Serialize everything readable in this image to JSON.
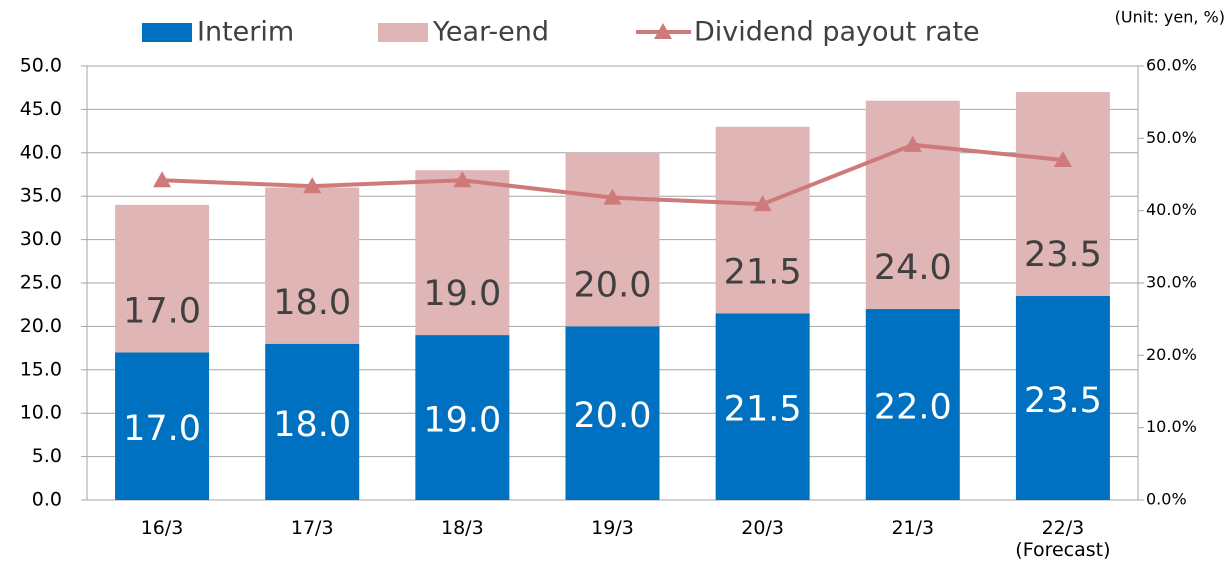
{
  "chart_data": {
    "type": "bar",
    "stacked": true,
    "note": "(Unit: yen, %)",
    "categories": [
      "16/3",
      "17/3",
      "18/3",
      "19/3",
      "20/3",
      "21/3",
      "22/3\n(Forecast)"
    ],
    "series": [
      {
        "name": "Interim",
        "color": "#0070c0",
        "values": [
          17.0,
          18.0,
          19.0,
          20.0,
          21.5,
          22.0,
          23.5
        ],
        "value_labels": [
          "17.0",
          "18.0",
          "19.0",
          "20.0",
          "21.5",
          "22.0",
          "23.5"
        ]
      },
      {
        "name": "Year-end",
        "color": "#dfb5b5",
        "values": [
          17.0,
          18.0,
          19.0,
          20.0,
          21.5,
          24.0,
          23.5
        ],
        "value_labels": [
          "17.0",
          "18.0",
          "19.0",
          "20.0",
          "21.5",
          "24.0",
          "23.5"
        ]
      },
      {
        "name": "Dividend payout rate",
        "type": "line",
        "axis": "y2",
        "color": "#cf7a7a",
        "values": [
          44.2,
          43.4,
          44.2,
          41.8,
          40.9,
          49.1,
          47.0
        ]
      }
    ],
    "ylim": [
      0,
      50
    ],
    "yticks": [
      {
        "value": 0,
        "label": "0.0"
      },
      {
        "value": 5,
        "label": "5.0"
      },
      {
        "value": 10,
        "label": "10.0"
      },
      {
        "value": 15,
        "label": "15.0"
      },
      {
        "value": 20,
        "label": "20.0"
      },
      {
        "value": 25,
        "label": "25.0"
      },
      {
        "value": 30,
        "label": "30.0"
      },
      {
        "value": 35,
        "label": "35.0"
      },
      {
        "value": 40,
        "label": "40.0"
      },
      {
        "value": 45,
        "label": "45.0"
      },
      {
        "value": 50,
        "label": "50.0"
      }
    ],
    "y2lim": [
      0,
      60
    ],
    "y2ticks": [
      {
        "value": 0,
        "label": "0.0%"
      },
      {
        "value": 10,
        "label": "10.0%"
      },
      {
        "value": 20,
        "label": "20.0%"
      },
      {
        "value": 30,
        "label": "30.0%"
      },
      {
        "value": 40,
        "label": "40.0%"
      },
      {
        "value": 50,
        "label": "50.0%"
      },
      {
        "value": 60,
        "label": "60.0%"
      }
    ],
    "grid": true
  }
}
